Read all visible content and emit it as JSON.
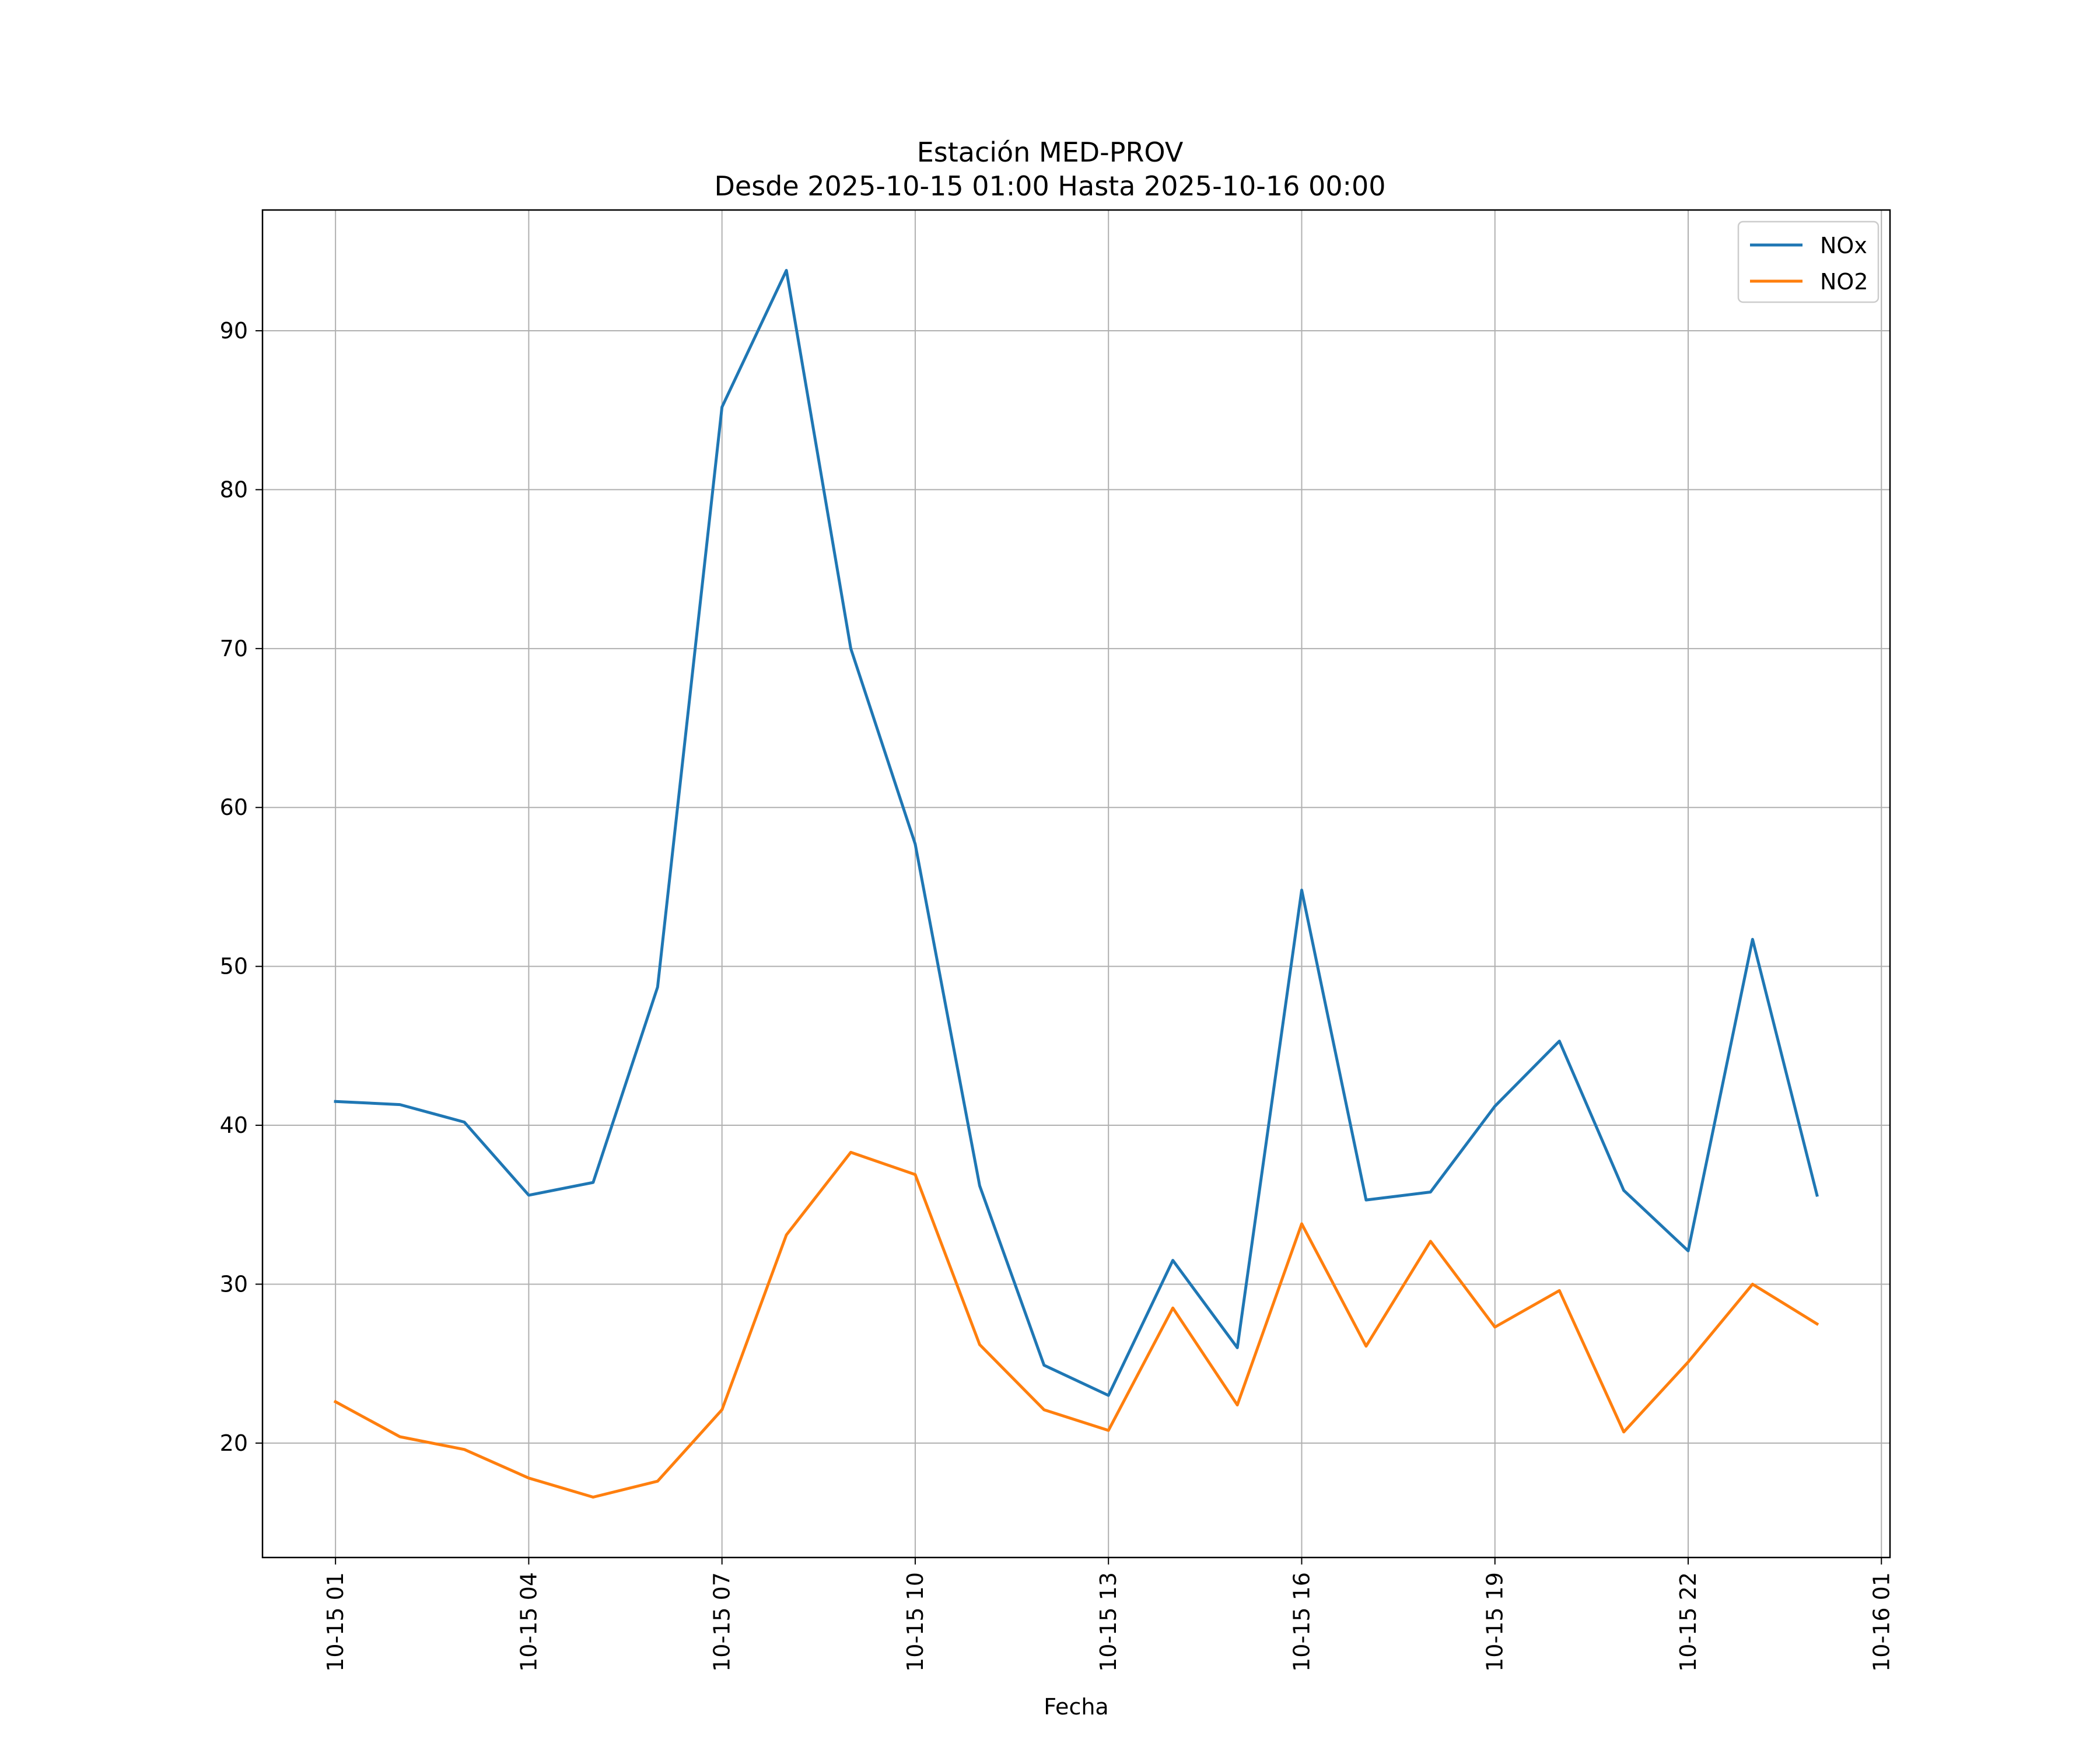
{
  "chart_data": {
    "type": "line",
    "title": "Estación MED-PROV",
    "subtitle": "Desde 2025-10-15 01:00 Hasta 2025-10-16 00:00",
    "xlabel": "Fecha",
    "ylabel": "",
    "x": [
      "2025-10-15 01:00",
      "2025-10-15 02:00",
      "2025-10-15 03:00",
      "2025-10-15 04:00",
      "2025-10-15 05:00",
      "2025-10-15 06:00",
      "2025-10-15 07:00",
      "2025-10-15 08:00",
      "2025-10-15 09:00",
      "2025-10-15 10:00",
      "2025-10-15 11:00",
      "2025-10-15 12:00",
      "2025-10-15 13:00",
      "2025-10-15 14:00",
      "2025-10-15 15:00",
      "2025-10-15 16:00",
      "2025-10-15 17:00",
      "2025-10-15 18:00",
      "2025-10-15 19:00",
      "2025-10-15 20:00",
      "2025-10-15 21:00",
      "2025-10-15 22:00",
      "2025-10-15 23:00",
      "2025-10-16 00:00"
    ],
    "xticks": {
      "labels": [
        "10-15 01",
        "10-15 04",
        "10-15 07",
        "10-15 10",
        "10-15 13",
        "10-15 16",
        "10-15 19",
        "10-15 22",
        "10-16 01"
      ],
      "values": [
        "2025-10-15 01:00",
        "2025-10-15 04:00",
        "2025-10-15 07:00",
        "2025-10-15 10:00",
        "2025-10-15 13:00",
        "2025-10-15 16:00",
        "2025-10-15 19:00",
        "2025-10-15 22:00",
        "2025-10-16 01:00"
      ]
    },
    "xlim": [
      "2025-10-14 23:52",
      "2025-10-16 01:08"
    ],
    "yticks": [
      20,
      30,
      40,
      50,
      60,
      70,
      80,
      90
    ],
    "ylim": [
      12.8,
      97.6
    ],
    "grid": true,
    "legend": "top-right",
    "series": [
      {
        "name": "NOx",
        "color": "#1f77b4",
        "values": [
          41.5,
          41.3,
          40.2,
          35.6,
          36.4,
          48.7,
          85.2,
          93.8,
          70.0,
          57.7,
          36.2,
          24.9,
          23.0,
          31.5,
          26.0,
          54.8,
          35.3,
          35.8,
          41.2,
          45.3,
          35.9,
          32.1,
          51.7,
          35.6
        ]
      },
      {
        "name": "NO2",
        "color": "#ff7f0e",
        "values": [
          22.6,
          20.4,
          19.6,
          17.8,
          16.6,
          17.6,
          22.1,
          33.1,
          38.3,
          36.9,
          26.2,
          22.1,
          20.8,
          28.5,
          22.4,
          33.8,
          26.1,
          32.7,
          27.3,
          29.6,
          20.7,
          25.1,
          30.0,
          27.5
        ]
      }
    ]
  }
}
